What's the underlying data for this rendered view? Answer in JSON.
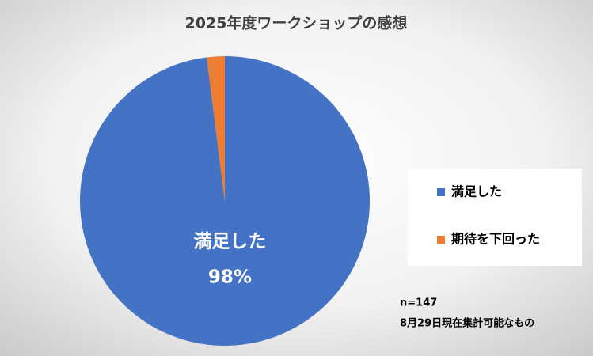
{
  "chart_data": {
    "type": "pie",
    "title": "2025年度ワークショップの感想",
    "categories": [
      "満足した",
      "期待を下回った"
    ],
    "values": [
      98,
      2
    ],
    "value_labels": [
      "98%",
      null
    ],
    "colors": [
      "#4472c4",
      "#ed7d31"
    ],
    "legend": "right",
    "annotations": [
      "n=147",
      "8月29日現在集計可能なもの"
    ]
  }
}
